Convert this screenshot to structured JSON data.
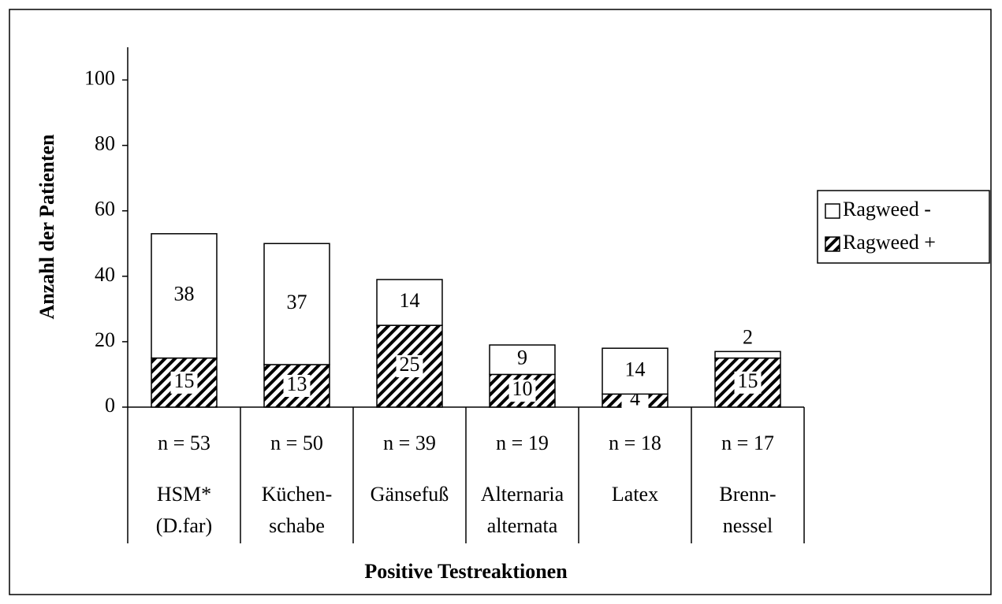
{
  "chart_data": {
    "type": "stacked_bar",
    "y_label": "Anzahl der Patienten",
    "x_label": "Positive Testreaktionen",
    "categories": [
      [
        "HSM*",
        "(D.far)"
      ],
      [
        "Küchen-",
        "schabe"
      ],
      [
        "Gänsefuß"
      ],
      [
        "Alternaria",
        "alternata"
      ],
      [
        "Latex"
      ],
      [
        "Brenn-",
        "nessel"
      ]
    ],
    "n_labels": [
      "n = 53",
      "n = 50",
      "n = 39",
      "n = 19",
      "n = 18",
      "n = 17"
    ],
    "series": [
      {
        "name": "Ragweed +",
        "color": "#000000",
        "hatch": true,
        "values": [
          15,
          13,
          25,
          10,
          4,
          15
        ]
      },
      {
        "name": "Ragweed -",
        "color": "#ffffff",
        "hatch": false,
        "values": [
          38,
          37,
          14,
          9,
          14,
          2
        ]
      }
    ],
    "ylim": [
      0,
      110
    ],
    "yticks": [
      0,
      20,
      40,
      60,
      80,
      100
    ],
    "grid": false,
    "legend": "right"
  }
}
